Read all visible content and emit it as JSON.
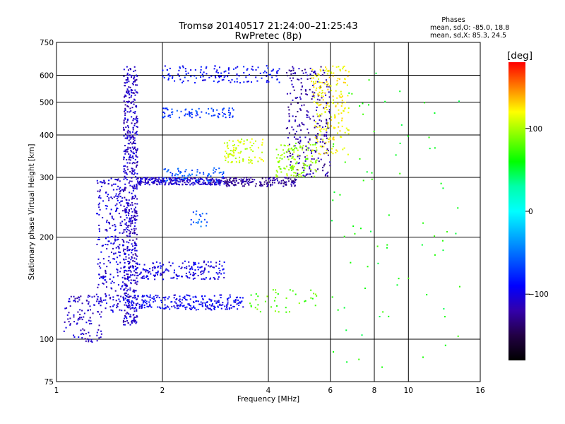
{
  "chart_data": {
    "type": "scatter",
    "title": "Tromsø 20140517 21:24:00–21:25:43",
    "subtitle": "RwPretec (8p)",
    "xlabel": "Frequency [MHz]",
    "ylabel": "Stationary phase Virtual Height [km]",
    "x_scale": "log",
    "y_scale": "log",
    "xlim": [
      1,
      16
    ],
    "ylim": [
      75,
      750
    ],
    "x_ticks": [
      1,
      2,
      4,
      6,
      8,
      10,
      16
    ],
    "y_ticks": [
      75,
      100,
      200,
      300,
      400,
      500,
      600,
      750
    ],
    "x_gridlines": [
      2,
      4,
      6,
      8,
      10
    ],
    "y_gridlines": [
      100,
      200,
      300,
      400,
      500,
      600
    ],
    "grid": true,
    "stats_heading": "Phases",
    "stats_lines": [
      "mean, sd,O: -85.0, 18.8",
      "mean, sd,X:  85.3, 24.5"
    ],
    "colorbar": {
      "label": "[deg]",
      "range": [
        -180,
        180
      ],
      "ticks": [
        {
          "value": 100,
          "label": "100"
        },
        {
          "value": 0,
          "label": "0"
        },
        {
          "value": -100,
          "label": "−100"
        }
      ],
      "gradient": [
        "#ff0000",
        "#ff7f00",
        "#ffff00",
        "#7fff00",
        "#00ff00",
        "#00ffaa",
        "#00ffff",
        "#00aaff",
        "#0055ff",
        "#0000ff",
        "#3300aa",
        "#220044",
        "#000000"
      ]
    },
    "point_groups": [
      {
        "x_range": [
          1.55,
          1.7
        ],
        "y_range": [
          110,
          640
        ],
        "phase": -110,
        "count": 600
      },
      {
        "x_range": [
          1.3,
          1.55
        ],
        "y_range": [
          120,
          300
        ],
        "phase": -105,
        "count": 260
      },
      {
        "x_range": [
          1.05,
          1.35
        ],
        "y_range": [
          98,
          135
        ],
        "phase": -110,
        "count": 110
      },
      {
        "x_range": [
          1.55,
          3.4
        ],
        "y_range": [
          122,
          135
        ],
        "phase": -95,
        "count": 260
      },
      {
        "x_range": [
          1.55,
          3.0
        ],
        "y_range": [
          150,
          170
        ],
        "phase": -100,
        "count": 200
      },
      {
        "x_range": [
          1.7,
          3.0
        ],
        "y_range": [
          285,
          300
        ],
        "phase": -110,
        "count": 260
      },
      {
        "x_range": [
          3.0,
          4.8
        ],
        "y_range": [
          282,
          300
        ],
        "phase": -125,
        "count": 160
      },
      {
        "x_range": [
          4.5,
          6.0
        ],
        "y_range": [
          300,
          640
        ],
        "phase": -120,
        "count": 260
      },
      {
        "x_range": [
          2.0,
          3.0
        ],
        "y_range": [
          290,
          320
        ],
        "phase": -60,
        "count": 70
      },
      {
        "x_range": [
          3.0,
          3.9
        ],
        "y_range": [
          330,
          390
        ],
        "phase": 110,
        "count": 90
      },
      {
        "x_range": [
          4.2,
          5.5
        ],
        "y_range": [
          300,
          380
        ],
        "phase": 95,
        "count": 120
      },
      {
        "x_range": [
          5.3,
          6.8
        ],
        "y_range": [
          350,
          640
        ],
        "phase": 120,
        "count": 200
      },
      {
        "x_range": [
          2.0,
          4.3
        ],
        "y_range": [
          570,
          640
        ],
        "phase": -90,
        "count": 140
      },
      {
        "x_range": [
          2.0,
          3.2
        ],
        "y_range": [
          450,
          480
        ],
        "phase": -70,
        "count": 80
      },
      {
        "x_range": [
          2.4,
          2.7
        ],
        "y_range": [
          215,
          240
        ],
        "phase": -60,
        "count": 20
      },
      {
        "x_range": [
          3.5,
          5.5
        ],
        "y_range": [
          120,
          140
        ],
        "phase": 80,
        "count": 40
      },
      {
        "x_range": [
          6.0,
          14.0
        ],
        "y_range": [
          80,
          620
        ],
        "phase": 60,
        "count": 80
      }
    ]
  }
}
